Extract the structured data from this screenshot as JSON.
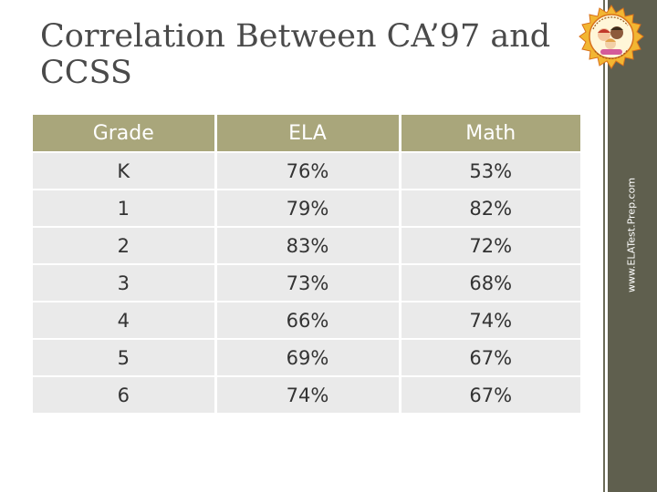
{
  "slide": {
    "title": "Correlation Between CA’97 and CCSS",
    "sidebar_text": "www.ELATest.Prep.com",
    "logo": {
      "icon": "kids-badge-logo",
      "colors": {
        "ring": "#f2b632",
        "border": "#d9721c"
      }
    }
  },
  "table": {
    "headers": [
      "Grade",
      "ELA",
      "Math"
    ],
    "rows": [
      [
        "K",
        "76%",
        "53%"
      ],
      [
        "1",
        "79%",
        "82%"
      ],
      [
        "2",
        "83%",
        "72%"
      ],
      [
        "3",
        "73%",
        "68%"
      ],
      [
        "4",
        "66%",
        "74%"
      ],
      [
        "5",
        "69%",
        "67%"
      ],
      [
        "6",
        "74%",
        "67%"
      ]
    ]
  },
  "colors": {
    "header_bg": "#a9a67b",
    "cell_bg": "#eaeaea",
    "sidebar_bg": "#5f5f4e",
    "title": "#4a4a4a"
  }
}
